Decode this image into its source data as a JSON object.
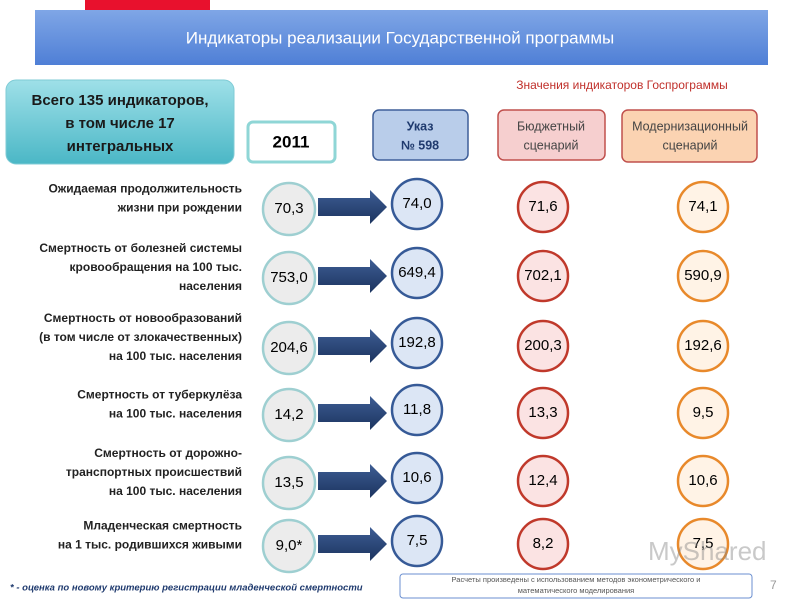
{
  "header": {
    "title": "Индикаторы реализации Государственной программы",
    "subtitle": "Значения индикаторов Госпрограммы"
  },
  "summary": [
    "Всего 135 индикаторов,",
    "в том числе 17",
    "интегральных"
  ],
  "columns": {
    "base": "2011",
    "decree": [
      "Указ",
      "№ 598"
    ],
    "budget": [
      "Бюджетный",
      "сценарий"
    ],
    "modern": [
      "Модернизационный",
      "сценарий"
    ]
  },
  "rows": [
    {
      "label": [
        "Ожидаемая продолжительность",
        "жизни при рождении"
      ],
      "base": "70,3",
      "decree": "74,0",
      "budget": "71,6",
      "modern": "74,1"
    },
    {
      "label": [
        "Смертность от болезней системы",
        "кровообращения на 100 тыс.",
        "населения"
      ],
      "base": "753,0",
      "decree": "649,4",
      "budget": "702,1",
      "modern": "590,9"
    },
    {
      "label": [
        "Смертность от новообразований",
        "(в том числе от злокачественных)",
        "на 100 тыс. населения"
      ],
      "base": "204,6",
      "decree": "192,8",
      "budget": "200,3",
      "modern": "192,6"
    },
    {
      "label": [
        "Смертность от туберкулёза",
        "на 100 тыс. населения"
      ],
      "base": "14,2",
      "decree": "11,8",
      "budget": "13,3",
      "modern": "9,5"
    },
    {
      "label": [
        "Смертность от дорожно-",
        "транспортных происшествий",
        "на 100 тыс. населения"
      ],
      "base": "13,5",
      "decree": "10,6",
      "budget": "12,4",
      "modern": "10,6"
    },
    {
      "label": [
        "Младенческая смертность",
        "на 1 тыс. родившихся живыми"
      ],
      "base": "9,0*",
      "decree": "7,5",
      "budget": "8,2",
      "modern": "7,5"
    }
  ],
  "footnote": "* - оценка по новому критерию регистрации младенческой смертности",
  "note": [
    "Расчеты произведены с использованием методов эконометрического и",
    "математического моделирования"
  ],
  "page_number": "7",
  "watermark": "MyShared"
}
